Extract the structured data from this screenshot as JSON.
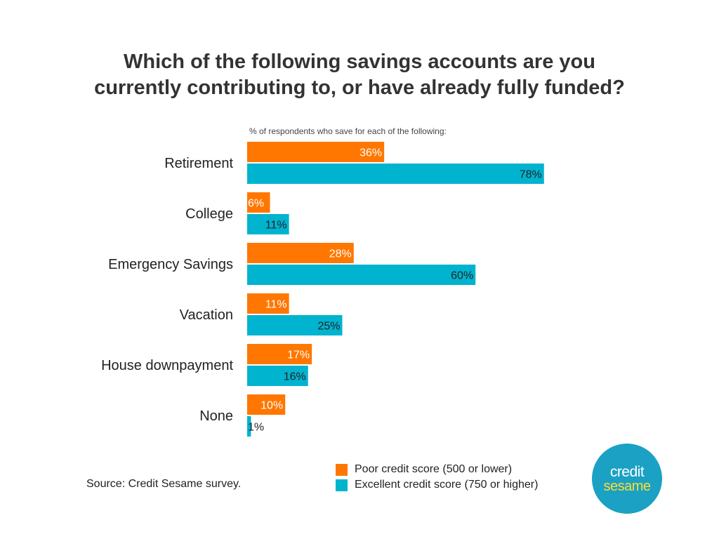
{
  "title_lines": [
    "Which of the following savings accounts are you",
    "currently contributing to, or have already fully funded?"
  ],
  "source": "Source: Credit Sesame survey.",
  "logo": {
    "line1": "credit",
    "line2": "sesame"
  },
  "colors": {
    "poor": "#ff7700",
    "excellent": "#00b3cf",
    "logo_bg": "#1aa1c4"
  },
  "chart_data": {
    "type": "bar",
    "orientation": "horizontal",
    "subtitle": "% of respondents who save for each of the following:",
    "categories": [
      "Retirement",
      "College",
      "Emergency Savings",
      "Vacation",
      "House downpayment",
      "None"
    ],
    "series": [
      {
        "name": "Poor credit score (500 or lower)",
        "color": "#ff7700",
        "values": [
          36,
          6,
          28,
          11,
          17,
          10
        ],
        "labels": [
          "36%",
          "6%",
          "28%",
          "11%",
          "17%",
          "10%"
        ]
      },
      {
        "name": "Excellent credit score (750 or higher)",
        "color": "#00b3cf",
        "values": [
          78,
          11,
          60,
          25,
          16,
          1
        ],
        "labels": [
          "78%",
          "11%",
          "60%",
          "25%",
          "16%",
          "1%"
        ]
      }
    ],
    "xlim": [
      0,
      78
    ],
    "grid": false,
    "legend_position": "bottom"
  }
}
